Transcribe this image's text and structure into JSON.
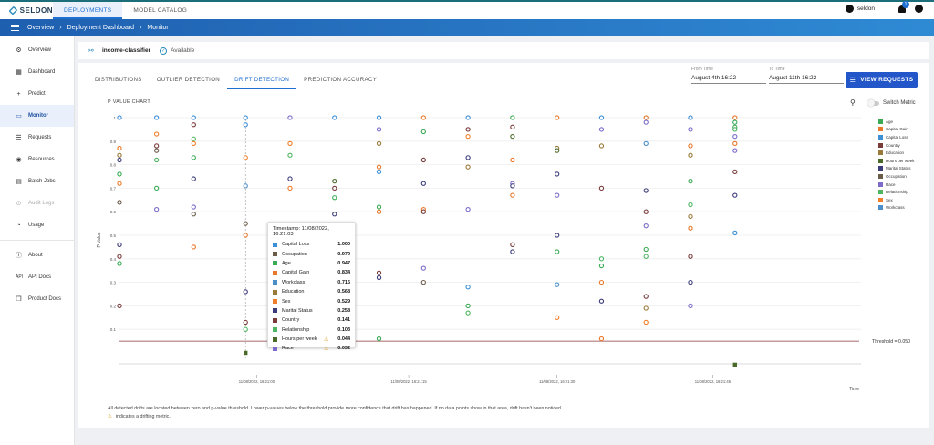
{
  "app": {
    "logo_text": "SELDON",
    "nav": [
      {
        "label": "DEPLOYMENTS",
        "active": true
      },
      {
        "label": "MODEL CATALOG",
        "active": false
      }
    ],
    "user": "seldon",
    "notifications": "1"
  },
  "breadcrumb": [
    "Overview",
    "Deployment Dashboard",
    "Monitor"
  ],
  "sidebar": {
    "items": [
      {
        "label": "Overview",
        "icon": "gear-icon"
      },
      {
        "label": "Dashboard",
        "icon": "dashboard-icon"
      },
      {
        "label": "Predict",
        "icon": "plus-icon"
      },
      {
        "label": "Monitor",
        "icon": "monitor-icon",
        "active": true
      },
      {
        "label": "Requests",
        "icon": "list-icon"
      },
      {
        "label": "Resources",
        "icon": "resources-icon"
      },
      {
        "label": "Batch Jobs",
        "icon": "batch-icon"
      },
      {
        "label": "Audit Logs",
        "icon": "audit-icon",
        "disabled": true
      },
      {
        "label": "Usage",
        "icon": "usage-icon"
      }
    ],
    "bottom_items": [
      {
        "label": "About",
        "icon": "info-icon"
      },
      {
        "label": "API Docs",
        "icon": "api-icon"
      },
      {
        "label": "Product Docs",
        "icon": "docs-icon"
      }
    ]
  },
  "deployment": {
    "name": "income-classifier",
    "status": "Available"
  },
  "tabs": [
    {
      "label": "DISTRIBUTIONS"
    },
    {
      "label": "OUTLIER DETECTION"
    },
    {
      "label": "DRIFT DETECTION",
      "active": true
    },
    {
      "label": "PREDICTION ACCURACY"
    }
  ],
  "filters": {
    "from_label": "From Time",
    "from_value": "August 4th 16:22",
    "to_label": "To Time",
    "to_value": "August 11th 16:22"
  },
  "view_requests_label": "VIEW REQUESTS",
  "switch_metric_label": "Switch Metric",
  "chart_data": {
    "type": "scatter",
    "title": "P VALUE CHART",
    "ylabel": "P Value",
    "xlabel": "Time",
    "ylim": [
      0,
      1
    ],
    "y_ticks": [
      "0.1",
      "0.2",
      "0.3",
      "0.4",
      "0.5",
      "0.6",
      "0.7",
      "0.8",
      "0.9",
      "1"
    ],
    "x_ticks": [
      "11/08/2022, 16:21:00",
      "11/08/2022, 16:21:15",
      "11/08/2022, 16:21:30",
      "11/08/2022, 16:21:45"
    ],
    "threshold": 0.05,
    "threshold_label": "Threshold = 0.050",
    "legend_position": "right",
    "series": [
      {
        "name": "Age",
        "color": "#3aaa55"
      },
      {
        "name": "Capital Gain",
        "color": "#e8782a"
      },
      {
        "name": "Capital Loss",
        "color": "#3d8fd6"
      },
      {
        "name": "Country",
        "color": "#7a3b3b"
      },
      {
        "name": "Education",
        "color": "#9a7a3a"
      },
      {
        "name": "Hours per week",
        "color": "#4a6a2a"
      },
      {
        "name": "Marital Status",
        "color": "#3b3c7a"
      },
      {
        "name": "Occupation",
        "color": "#6b5c4a"
      },
      {
        "name": "Race",
        "color": "#7d6bc9"
      },
      {
        "name": "Relationship",
        "color": "#4fb562"
      },
      {
        "name": "Sex",
        "color": "#f07f2a"
      },
      {
        "name": "Workclass",
        "color": "#4c8fc8"
      }
    ],
    "columns": [
      {
        "x": 0.0,
        "points": [
          [
            "Capital Loss",
            1.0
          ],
          [
            "Capital Gain",
            0.87
          ],
          [
            "Education",
            0.84
          ],
          [
            "Marital Status",
            0.82
          ],
          [
            "Age",
            0.76
          ],
          [
            "Sex",
            0.72
          ],
          [
            "Occupation",
            0.64
          ],
          [
            "Marital Status",
            0.46
          ],
          [
            "Country",
            0.41
          ],
          [
            "Age",
            0.38
          ],
          [
            "Country",
            0.2
          ]
        ]
      },
      {
        "x": 0.05,
        "points": [
          [
            "Capital Loss",
            1.0
          ],
          [
            "Sex",
            0.93
          ],
          [
            "Country",
            0.88
          ],
          [
            "Occupation",
            0.86
          ],
          [
            "Relationship",
            0.82
          ],
          [
            "Age",
            0.7
          ],
          [
            "Race",
            0.61
          ]
        ]
      },
      {
        "x": 0.1,
        "points": [
          [
            "Capital Loss",
            1.0
          ],
          [
            "Country",
            0.97
          ],
          [
            "Relationship",
            0.91
          ],
          [
            "Sex",
            0.89
          ],
          [
            "Age",
            0.83
          ],
          [
            "Marital Status",
            0.74
          ],
          [
            "Race",
            0.62
          ],
          [
            "Occupation",
            0.59
          ],
          [
            "Capital Gain",
            0.45
          ]
        ]
      },
      {
        "x": 0.17,
        "points": [
          [
            "Capital Loss",
            1.0
          ],
          [
            "Capital Loss",
            0.97
          ],
          [
            "Sex",
            0.83
          ],
          [
            "Workclass",
            0.71
          ],
          [
            "Occupation",
            0.55
          ],
          [
            "Capital Gain",
            0.5
          ],
          [
            "Marital Status",
            0.26
          ],
          [
            "Country",
            0.13
          ],
          [
            "Relationship",
            0.1
          ],
          [
            "Hours per week",
            0.0
          ]
        ]
      },
      {
        "x": 0.23,
        "points": [
          [
            "Race",
            1.0
          ],
          [
            "Sex",
            0.89
          ],
          [
            "Relationship",
            0.84
          ],
          [
            "Marital Status",
            0.74
          ],
          [
            "Sex",
            0.7
          ]
        ]
      },
      {
        "x": 0.29,
        "points": [
          [
            "Capital Loss",
            1.0
          ],
          [
            "Country",
            0.7
          ],
          [
            "Age",
            0.66
          ],
          [
            "Marital Status",
            0.59
          ],
          [
            "Education",
            0.53
          ],
          [
            "Workclass",
            0.28
          ],
          [
            "Country",
            0.26
          ],
          [
            "Hours per week",
            0.73
          ]
        ]
      },
      {
        "x": 0.35,
        "points": [
          [
            "Capital Loss",
            1.0
          ],
          [
            "Race",
            0.95
          ],
          [
            "Education",
            0.89
          ],
          [
            "Capital Gain",
            0.79
          ],
          [
            "Capital Loss",
            0.77
          ],
          [
            "Age",
            0.62
          ],
          [
            "Capital Gain",
            0.6
          ],
          [
            "Country",
            0.34
          ],
          [
            "Marital Status",
            0.32
          ],
          [
            "Age",
            0.06
          ]
        ]
      },
      {
        "x": 0.41,
        "points": [
          [
            "Capital Gain",
            1.0
          ],
          [
            "Age",
            0.94
          ],
          [
            "Country",
            0.82
          ],
          [
            "Marital Status",
            0.72
          ],
          [
            "Capital Gain",
            0.61
          ],
          [
            "Country",
            0.6
          ],
          [
            "Race",
            0.36
          ],
          [
            "Occupation",
            0.3
          ]
        ]
      },
      {
        "x": 0.47,
        "points": [
          [
            "Capital Loss",
            1.0
          ],
          [
            "Country",
            0.95
          ],
          [
            "Sex",
            0.92
          ],
          [
            "Marital Status",
            0.83
          ],
          [
            "Education",
            0.79
          ],
          [
            "Race",
            0.61
          ],
          [
            "Capital Loss",
            0.28
          ],
          [
            "Age",
            0.2
          ],
          [
            "Relationship",
            0.17
          ]
        ]
      },
      {
        "x": 0.53,
        "points": [
          [
            "Age",
            1.0
          ],
          [
            "Country",
            0.96
          ],
          [
            "Hours per week",
            0.92
          ],
          [
            "Capital Gain",
            0.82
          ],
          [
            "Race",
            0.72
          ],
          [
            "Marital Status",
            0.71
          ],
          [
            "Capital Gain",
            0.67
          ],
          [
            "Country",
            0.46
          ],
          [
            "Marital Status",
            0.43
          ]
        ]
      },
      {
        "x": 0.59,
        "points": [
          [
            "Capital Gain",
            1.0
          ],
          [
            "Education",
            0.87
          ],
          [
            "Hours per week",
            0.86
          ],
          [
            "Marital Status",
            0.76
          ],
          [
            "Race",
            0.67
          ],
          [
            "Marital Status",
            0.5
          ],
          [
            "Age",
            0.43
          ],
          [
            "Workclass",
            0.29
          ],
          [
            "Sex",
            0.15
          ]
        ]
      },
      {
        "x": 0.65,
        "points": [
          [
            "Capital Loss",
            1.0
          ],
          [
            "Race",
            0.95
          ],
          [
            "Education",
            0.88
          ],
          [
            "Country",
            0.7
          ],
          [
            "Relationship",
            0.4
          ],
          [
            "Age",
            0.37
          ],
          [
            "Capital Gain",
            0.3
          ],
          [
            "Marital Status",
            0.22
          ],
          [
            "Capital Gain",
            0.06
          ]
        ]
      },
      {
        "x": 0.71,
        "points": [
          [
            "Capital Gain",
            1.0
          ],
          [
            "Race",
            0.98
          ],
          [
            "Workclass",
            0.89
          ],
          [
            "Marital Status",
            0.69
          ],
          [
            "Country",
            0.6
          ],
          [
            "Race",
            0.54
          ],
          [
            "Age",
            0.44
          ],
          [
            "Relationship",
            0.41
          ],
          [
            "Country",
            0.24
          ],
          [
            "Education",
            0.19
          ],
          [
            "Sex",
            0.13
          ]
        ]
      },
      {
        "x": 0.77,
        "points": [
          [
            "Capital Loss",
            1.0
          ],
          [
            "Race",
            0.95
          ],
          [
            "Capital Gain",
            0.88
          ],
          [
            "Education",
            0.84
          ],
          [
            "Age",
            0.73
          ],
          [
            "Relationship",
            0.63
          ],
          [
            "Education",
            0.58
          ],
          [
            "Capital Gain",
            0.53
          ],
          [
            "Country",
            0.41
          ],
          [
            "Marital Status",
            0.3
          ],
          [
            "Race",
            0.2
          ]
        ]
      },
      {
        "x": 0.83,
        "points": [
          [
            "Capital Gain",
            1.0
          ],
          [
            "Age",
            0.98
          ],
          [
            "Age",
            0.96
          ],
          [
            "Relationship",
            0.95
          ],
          [
            "Race",
            0.92
          ],
          [
            "Capital Gain",
            0.89
          ],
          [
            "Race",
            0.86
          ],
          [
            "Country",
            0.77
          ],
          [
            "Marital Status",
            0.67
          ],
          [
            "Capital Loss",
            0.51
          ],
          [
            "Hours per week",
            -0.05
          ]
        ]
      }
    ]
  },
  "tooltip": {
    "title": "Timestamp: 11/08/2022, 16:21:03",
    "rows": [
      {
        "name": "Capital Loss",
        "value": "1.000",
        "color": "#3d8fd6",
        "warn": false
      },
      {
        "name": "Occupation",
        "value": "0.979",
        "color": "#6b5c4a",
        "warn": false
      },
      {
        "name": "Age",
        "value": "0.947",
        "color": "#3aaa55",
        "warn": false
      },
      {
        "name": "Capital Gain",
        "value": "0.834",
        "color": "#e8782a",
        "warn": false
      },
      {
        "name": "Workclass",
        "value": "0.716",
        "color": "#4c8fc8",
        "warn": false
      },
      {
        "name": "Education",
        "value": "0.568",
        "color": "#9a7a3a",
        "warn": false
      },
      {
        "name": "Sex",
        "value": "0.529",
        "color": "#f07f2a",
        "warn": false
      },
      {
        "name": "Marital Status",
        "value": "0.258",
        "color": "#3b3c7a",
        "warn": false
      },
      {
        "name": "Country",
        "value": "0.141",
        "color": "#7a3b3b",
        "warn": false
      },
      {
        "name": "Relationship",
        "value": "0.103",
        "color": "#4fb562",
        "warn": false
      },
      {
        "name": "Hours per week",
        "value": "0.044",
        "color": "#4a6a2a",
        "warn": true
      },
      {
        "name": "Race",
        "value": "0.032",
        "color": "#7d6bc9",
        "warn": true
      }
    ]
  },
  "notes": {
    "line1": "All detected drifts are located between zero and p-value threshold. Lower p-values below the threshold provide more confidence that drift has happened. If no data points show in that area, drift hasn't been noticed.",
    "line2": "indicates a drifting metric."
  }
}
